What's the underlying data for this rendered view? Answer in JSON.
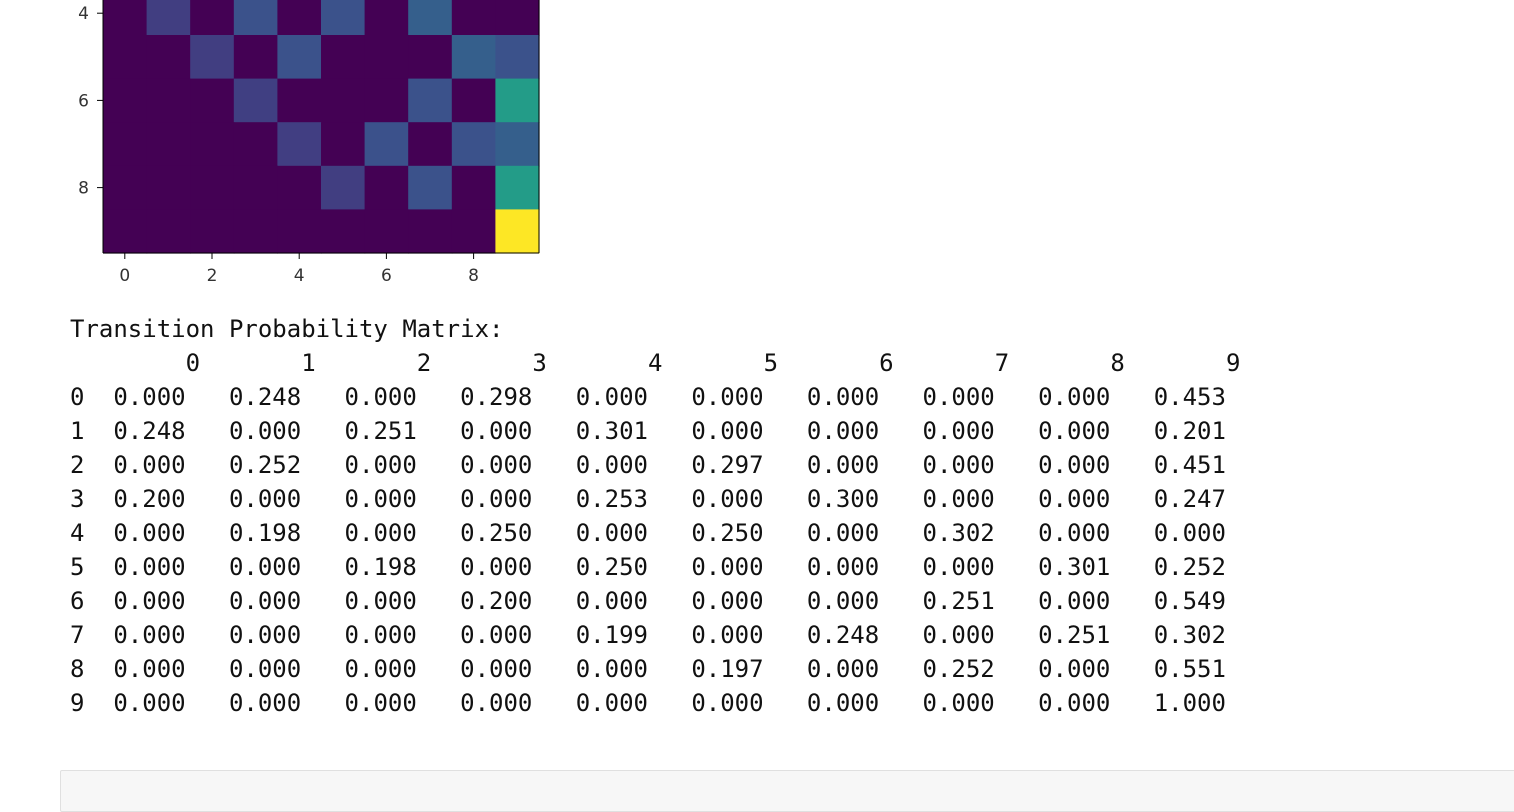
{
  "chart_data": {
    "type": "heatmap",
    "colormap": "viridis",
    "visible_rows": [
      4,
      5,
      6,
      7,
      8,
      9
    ],
    "x_ticks": [
      "0",
      "2",
      "4",
      "6",
      "8"
    ],
    "y_ticks": [
      "4",
      "6",
      "8"
    ],
    "grid": false,
    "legend": "none"
  },
  "output": {
    "title": "Transition Probability Matrix:",
    "columns": [
      "0",
      "1",
      "2",
      "3",
      "4",
      "5",
      "6",
      "7",
      "8",
      "9"
    ],
    "rows": [
      {
        "label": "0",
        "values": [
          "0.000",
          "0.248",
          "0.000",
          "0.298",
          "0.000",
          "0.000",
          "0.000",
          "0.000",
          "0.000",
          "0.453"
        ]
      },
      {
        "label": "1",
        "values": [
          "0.248",
          "0.000",
          "0.251",
          "0.000",
          "0.301",
          "0.000",
          "0.000",
          "0.000",
          "0.000",
          "0.201"
        ]
      },
      {
        "label": "2",
        "values": [
          "0.000",
          "0.252",
          "0.000",
          "0.000",
          "0.000",
          "0.297",
          "0.000",
          "0.000",
          "0.000",
          "0.451"
        ]
      },
      {
        "label": "3",
        "values": [
          "0.200",
          "0.000",
          "0.000",
          "0.000",
          "0.253",
          "0.000",
          "0.300",
          "0.000",
          "0.000",
          "0.247"
        ]
      },
      {
        "label": "4",
        "values": [
          "0.000",
          "0.198",
          "0.000",
          "0.250",
          "0.000",
          "0.250",
          "0.000",
          "0.302",
          "0.000",
          "0.000"
        ]
      },
      {
        "label": "5",
        "values": [
          "0.000",
          "0.000",
          "0.198",
          "0.000",
          "0.250",
          "0.000",
          "0.000",
          "0.000",
          "0.301",
          "0.252"
        ]
      },
      {
        "label": "6",
        "values": [
          "0.000",
          "0.000",
          "0.000",
          "0.200",
          "0.000",
          "0.000",
          "0.000",
          "0.251",
          "0.000",
          "0.549"
        ]
      },
      {
        "label": "7",
        "values": [
          "0.000",
          "0.000",
          "0.000",
          "0.000",
          "0.199",
          "0.000",
          "0.248",
          "0.000",
          "0.251",
          "0.302"
        ]
      },
      {
        "label": "8",
        "values": [
          "0.000",
          "0.000",
          "0.000",
          "0.000",
          "0.000",
          "0.197",
          "0.000",
          "0.252",
          "0.000",
          "0.551"
        ]
      },
      {
        "label": "9",
        "values": [
          "0.000",
          "0.000",
          "0.000",
          "0.000",
          "0.000",
          "0.000",
          "0.000",
          "0.000",
          "0.000",
          "1.000"
        ]
      }
    ]
  }
}
